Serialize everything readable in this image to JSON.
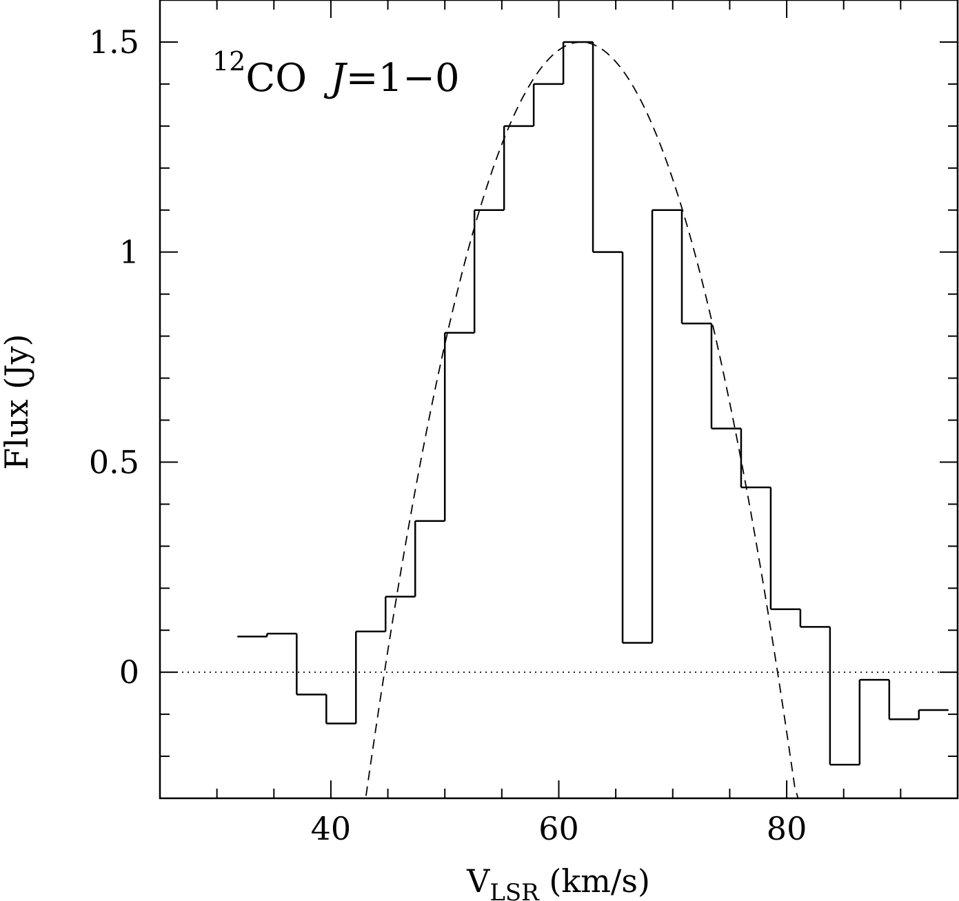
{
  "chart_data": {
    "type": "line",
    "annotation": {
      "superscript": "12",
      "species": "CO",
      "transition_italic": "J",
      "transition_rest": "=1−0"
    },
    "xlabel": {
      "main": "V",
      "subscript": "LSR",
      "units": " (km/s)"
    },
    "ylabel": "Flux (Jy)",
    "xlim": [
      25,
      95
    ],
    "ylim": [
      -0.3,
      1.6
    ],
    "x_ticks": [
      {
        "value": 40,
        "label": "40"
      },
      {
        "value": 60,
        "label": "60"
      },
      {
        "value": 80,
        "label": "80"
      }
    ],
    "x_minor_step": 5,
    "y_ticks": [
      {
        "value": 0,
        "label": "0"
      },
      {
        "value": 0.5,
        "label": "0.5"
      },
      {
        "value": 1,
        "label": "1"
      },
      {
        "value": 1.5,
        "label": "1.5"
      }
    ],
    "y_minor_step": 0.1,
    "zero_line": {
      "y": 0,
      "style": "dotted"
    },
    "series": [
      {
        "style": "histogram",
        "bin_width": 2.6,
        "x": [
          33.1,
          35.7,
          38.3,
          40.9,
          43.5,
          46.1,
          48.7,
          51.3,
          53.9,
          56.5,
          59.1,
          61.7,
          64.3,
          66.9,
          69.5,
          72.1,
          74.7,
          77.3,
          79.9,
          82.5,
          85.1,
          87.7,
          90.3,
          92.9
        ],
        "y": [
          0.085,
          0.092,
          -0.053,
          -0.122,
          0.097,
          0.18,
          0.36,
          0.808,
          1.1,
          1.3,
          1.4,
          1.5,
          1.0,
          0.07,
          1.1,
          0.83,
          0.58,
          0.44,
          0.15,
          0.108,
          -0.22,
          -0.018,
          -0.112,
          -0.09
        ]
      },
      {
        "style": "dashed",
        "kind": "parabolic fit",
        "peak_x": 62.7,
        "peak_y": 1.5,
        "zero_crossings": [
          44.7,
          79.2
        ]
      }
    ],
    "grid": false,
    "legend": "none"
  }
}
